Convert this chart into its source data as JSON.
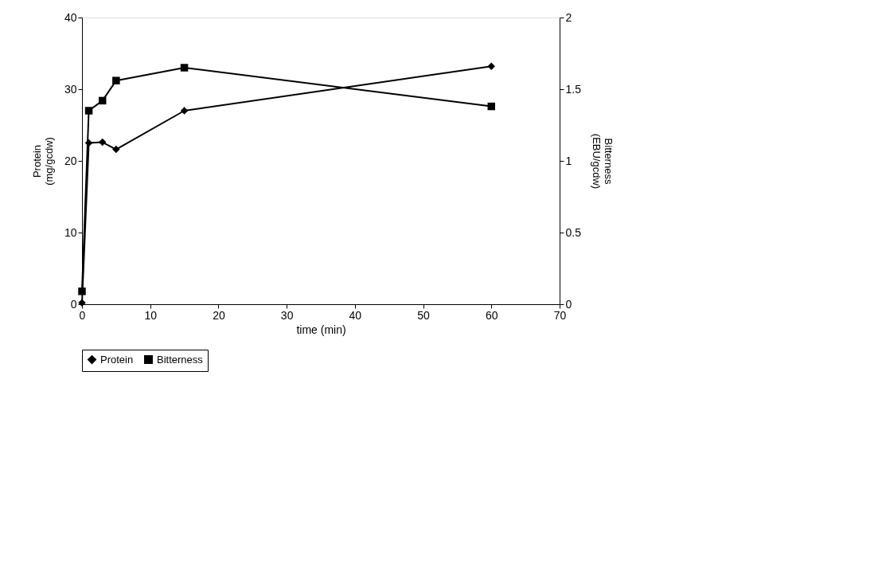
{
  "chart_data": {
    "type": "line",
    "xlabel": "time (min)",
    "ylabel": "Protein\n(mg/gcdw)",
    "y2label": "Bitterness\n(EBU/gcdw)",
    "x": [
      0,
      1,
      3,
      5,
      15,
      60
    ],
    "series": [
      {
        "name": "Protein",
        "color": "#000000",
        "marker": "diamond",
        "values": [
          0.2,
          22.5,
          22.6,
          21.6,
          27.0,
          33.2
        ]
      },
      {
        "name": "Bitterness",
        "color": "#000000",
        "marker": "square",
        "axis": "y2",
        "values": [
          0.09,
          1.35,
          1.42,
          1.56,
          1.65,
          1.38
        ]
      }
    ],
    "xlim": [
      0,
      70
    ],
    "xticks": [
      0,
      10,
      20,
      30,
      40,
      50,
      60,
      70
    ],
    "ylim": [
      0,
      40
    ],
    "yticks": [
      0,
      10,
      20,
      30,
      40
    ],
    "y2lim": [
      0,
      2
    ],
    "y2ticks": [
      0,
      0.5,
      1,
      1.5,
      2
    ],
    "grid": false,
    "legend": "bottom",
    "line_style": "solid"
  }
}
